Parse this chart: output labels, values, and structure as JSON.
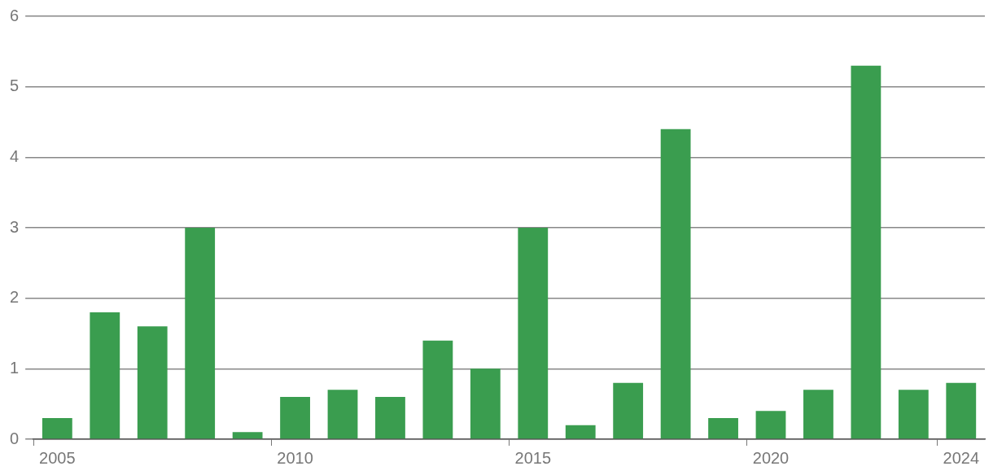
{
  "chart_data": {
    "type": "bar",
    "categories": [
      "2005",
      null,
      null,
      null,
      null,
      "2010",
      null,
      null,
      null,
      null,
      "2015",
      null,
      null,
      null,
      null,
      "2020",
      null,
      null,
      null,
      "2024"
    ],
    "values": [
      0.3,
      1.8,
      1.6,
      3.0,
      0.1,
      0.6,
      0.7,
      0.6,
      1.4,
      1.0,
      3.0,
      0.2,
      0.8,
      4.4,
      0.3,
      0.4,
      0.7,
      5.3,
      0.7,
      0.8
    ],
    "color": "#3a9d4f",
    "ylim": [
      0,
      6
    ],
    "yticks": [
      0,
      1,
      2,
      3,
      4,
      5,
      6
    ],
    "grid": "y",
    "legend": false
  }
}
